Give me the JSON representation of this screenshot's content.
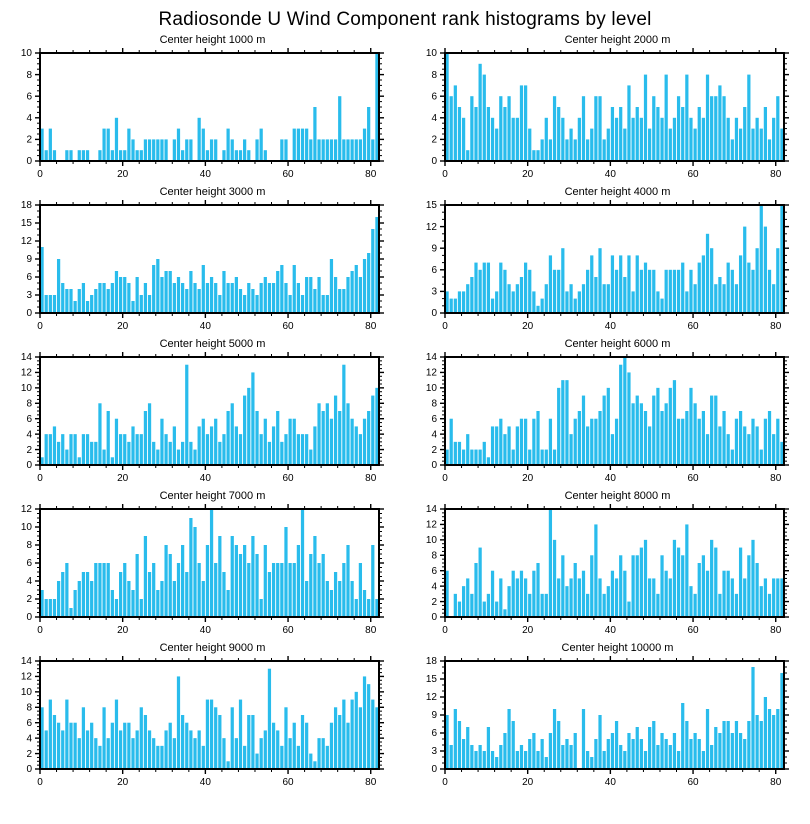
{
  "page": {
    "title": "Radiosonde U Wind Component rank histograms by level"
  },
  "colors": {
    "bar": "#29BCEC",
    "axis": "#000000",
    "background": "#FFFFFF"
  },
  "chart_data": [
    {
      "type": "bar",
      "title": "Center height 1000 m",
      "xlabel": "",
      "ylabel": "",
      "xlim": [
        0,
        82
      ],
      "ylim": [
        0,
        10
      ],
      "x_ticks": [
        0,
        20,
        40,
        60,
        80
      ],
      "x_minor_step": 4,
      "ytick_step": 2,
      "yminor_step": 0.5,
      "grid": false,
      "legend": "none",
      "values": [
        3,
        1,
        3,
        1,
        0,
        0,
        1,
        1,
        0,
        1,
        1,
        1,
        0,
        0,
        1,
        3,
        3,
        1,
        4,
        1,
        1,
        3,
        2,
        1,
        1,
        2,
        2,
        2,
        2,
        2,
        2,
        0,
        2,
        3,
        1,
        2,
        2,
        0,
        4,
        3,
        1,
        2,
        2,
        0,
        1,
        3,
        2,
        1,
        1,
        2,
        1,
        0,
        2,
        3,
        1,
        0,
        0,
        0,
        2,
        2,
        0,
        3,
        3,
        3,
        3,
        2,
        5,
        2,
        2,
        2,
        2,
        2,
        6,
        2,
        2,
        2,
        2,
        2,
        3,
        5,
        2,
        10
      ]
    },
    {
      "type": "bar",
      "title": "Center height 2000 m",
      "xlabel": "",
      "ylabel": "",
      "xlim": [
        0,
        82
      ],
      "ylim": [
        0,
        10
      ],
      "x_ticks": [
        0,
        20,
        40,
        60,
        80
      ],
      "x_minor_step": 4,
      "ytick_step": 2,
      "yminor_step": 0.5,
      "grid": false,
      "legend": "none",
      "values": [
        10,
        6,
        7,
        5,
        4,
        1,
        6,
        5,
        9,
        8,
        5,
        4,
        3,
        6,
        5,
        6,
        4,
        4,
        7,
        7,
        3,
        1,
        1,
        2,
        4,
        2,
        6,
        5,
        4,
        2,
        3,
        2,
        4,
        6,
        2,
        3,
        6,
        6,
        2,
        3,
        5,
        4,
        5,
        3,
        7,
        4,
        5,
        4,
        8,
        3,
        6,
        5,
        4,
        8,
        3,
        4,
        6,
        5,
        8,
        4,
        3,
        5,
        4,
        8,
        6,
        6,
        7,
        6,
        4,
        2,
        4,
        3,
        5,
        8,
        3,
        4,
        3,
        5,
        2,
        4,
        6,
        3
      ]
    },
    {
      "type": "bar",
      "title": "Center height 3000 m",
      "xlabel": "",
      "ylabel": "",
      "xlim": [
        0,
        82
      ],
      "ylim": [
        0,
        18
      ],
      "x_ticks": [
        0,
        20,
        40,
        60,
        80
      ],
      "x_minor_step": 4,
      "ytick_step": 3,
      "yminor_step": 1,
      "grid": false,
      "legend": "none",
      "values": [
        11,
        3,
        3,
        3,
        9,
        5,
        4,
        4,
        2,
        4,
        5,
        2,
        3,
        4,
        5,
        5,
        4,
        5,
        7,
        6,
        6,
        5,
        2,
        6,
        3,
        5,
        3,
        8,
        9,
        6,
        7,
        7,
        5,
        6,
        5,
        4,
        7,
        5,
        4,
        8,
        5,
        6,
        5,
        3,
        7,
        5,
        5,
        6,
        4,
        3,
        5,
        4,
        3,
        5,
        6,
        5,
        5,
        7,
        8,
        5,
        3,
        8,
        5,
        3,
        6,
        6,
        4,
        6,
        3,
        3,
        9,
        6,
        4,
        4,
        6,
        7,
        8,
        6,
        9,
        10,
        14,
        16
      ]
    },
    {
      "type": "bar",
      "title": "Center height 4000 m",
      "xlabel": "",
      "ylabel": "",
      "xlim": [
        0,
        82
      ],
      "ylim": [
        0,
        15
      ],
      "x_ticks": [
        0,
        20,
        40,
        60,
        80
      ],
      "x_minor_step": 4,
      "ytick_step": 3,
      "yminor_step": 1,
      "grid": false,
      "legend": "none",
      "values": [
        3,
        2,
        2,
        3,
        3,
        4,
        5,
        7,
        6,
        7,
        7,
        2,
        3,
        7,
        6,
        4,
        3,
        4,
        5,
        7,
        6,
        3,
        1,
        2,
        4,
        8,
        6,
        6,
        9,
        3,
        4,
        2,
        3,
        4,
        6,
        8,
        5,
        9,
        4,
        4,
        8,
        6,
        8,
        5,
        8,
        3,
        8,
        6,
        7,
        6,
        6,
        3,
        2,
        6,
        6,
        6,
        6,
        7,
        3,
        6,
        4,
        7,
        8,
        11,
        9,
        4,
        5,
        4,
        7,
        6,
        4,
        8,
        12,
        7,
        6,
        9,
        15,
        12,
        6,
        4,
        9,
        15
      ]
    },
    {
      "type": "bar",
      "title": "Center height 5000 m",
      "xlabel": "",
      "ylabel": "",
      "xlim": [
        0,
        82
      ],
      "ylim": [
        0,
        14
      ],
      "x_ticks": [
        0,
        20,
        40,
        60,
        80
      ],
      "x_minor_step": 4,
      "ytick_step": 2,
      "yminor_step": 0.5,
      "grid": false,
      "legend": "none",
      "values": [
        1,
        4,
        4,
        5,
        3,
        4,
        2,
        4,
        4,
        1,
        4,
        4,
        3,
        3,
        8,
        2,
        7,
        1,
        6,
        4,
        4,
        3,
        5,
        4,
        4,
        7,
        8,
        3,
        2,
        6,
        4,
        3,
        5,
        2,
        3,
        13,
        3,
        2,
        5,
        6,
        4,
        5,
        6,
        3,
        4,
        7,
        8,
        5,
        4,
        9,
        10,
        12,
        7,
        4,
        6,
        3,
        5,
        7,
        3,
        4,
        6,
        6,
        4,
        4,
        4,
        2,
        5,
        8,
        7,
        8,
        6,
        9,
        7,
        13,
        8,
        6,
        5,
        4,
        6,
        7,
        9,
        10
      ]
    },
    {
      "type": "bar",
      "title": "Center height 6000 m",
      "xlabel": "",
      "ylabel": "",
      "xlim": [
        0,
        82
      ],
      "ylim": [
        0,
        14
      ],
      "x_ticks": [
        0,
        20,
        40,
        60,
        80
      ],
      "x_minor_step": 4,
      "ytick_step": 2,
      "yminor_step": 0.5,
      "grid": false,
      "legend": "none",
      "values": [
        2,
        6,
        3,
        3,
        2,
        4,
        2,
        2,
        2,
        3,
        1,
        5,
        5,
        6,
        4,
        5,
        2,
        5,
        6,
        6,
        2,
        6,
        7,
        2,
        2,
        6,
        2,
        10,
        11,
        11,
        4,
        6,
        7,
        9,
        5,
        6,
        6,
        7,
        9,
        10,
        4,
        6,
        13,
        14,
        12,
        8,
        9,
        8,
        7,
        5,
        9,
        10,
        7,
        8,
        10,
        11,
        6,
        6,
        7,
        10,
        8,
        6,
        7,
        4,
        9,
        9,
        5,
        7,
        4,
        2,
        6,
        7,
        5,
        4,
        6,
        5,
        2,
        6,
        7,
        4,
        6,
        3
      ]
    },
    {
      "type": "bar",
      "title": "Center height 7000 m",
      "xlabel": "",
      "ylabel": "",
      "xlim": [
        0,
        82
      ],
      "ylim": [
        0,
        12
      ],
      "x_ticks": [
        0,
        20,
        40,
        60,
        80
      ],
      "x_minor_step": 4,
      "ytick_step": 2,
      "yminor_step": 0.5,
      "grid": false,
      "legend": "none",
      "values": [
        3,
        2,
        2,
        2,
        4,
        5,
        6,
        1,
        3,
        4,
        5,
        5,
        4,
        6,
        6,
        6,
        6,
        3,
        2,
        5,
        6,
        4,
        3,
        7,
        2,
        9,
        5,
        6,
        3,
        4,
        8,
        7,
        4,
        6,
        8,
        5,
        11,
        10,
        6,
        4,
        8,
        12,
        6,
        9,
        5,
        3,
        9,
        8,
        7,
        8,
        6,
        9,
        7,
        2,
        8,
        5,
        6,
        6,
        6,
        10,
        6,
        6,
        8,
        12,
        4,
        7,
        9,
        6,
        7,
        4,
        3,
        5,
        4,
        6,
        8,
        4,
        2,
        6,
        3,
        2,
        8,
        2
      ]
    },
    {
      "type": "bar",
      "title": "Center height 8000 m",
      "xlabel": "",
      "ylabel": "",
      "xlim": [
        0,
        82
      ],
      "ylim": [
        0,
        14
      ],
      "x_ticks": [
        0,
        20,
        40,
        60,
        80
      ],
      "x_minor_step": 4,
      "ytick_step": 2,
      "yminor_step": 0.5,
      "grid": false,
      "legend": "none",
      "values": [
        6,
        0,
        3,
        2,
        4,
        5,
        3,
        7,
        9,
        2,
        3,
        6,
        2,
        5,
        1,
        4,
        6,
        5,
        6,
        5,
        3,
        6,
        7,
        3,
        3,
        14,
        10,
        5,
        8,
        4,
        5,
        7,
        5,
        6,
        3,
        8,
        12,
        5,
        3,
        4,
        6,
        5,
        8,
        6,
        2,
        8,
        8,
        9,
        10,
        5,
        5,
        3,
        8,
        6,
        5,
        10,
        9,
        8,
        12,
        4,
        3,
        7,
        8,
        6,
        10,
        9,
        3,
        6,
        6,
        5,
        3,
        9,
        5,
        8,
        10,
        7,
        4,
        5,
        3,
        5,
        5,
        5
      ]
    },
    {
      "type": "bar",
      "title": "Center height 9000 m",
      "xlabel": "",
      "ylabel": "",
      "xlim": [
        0,
        82
      ],
      "ylim": [
        0,
        14
      ],
      "x_ticks": [
        0,
        20,
        40,
        60,
        80
      ],
      "x_minor_step": 4,
      "ytick_step": 2,
      "yminor_step": 0.5,
      "grid": false,
      "legend": "none",
      "values": [
        8,
        5,
        9,
        7,
        6,
        5,
        9,
        6,
        6,
        4,
        8,
        5,
        6,
        4,
        3,
        8,
        4,
        6,
        9,
        5,
        6,
        6,
        4,
        5,
        8,
        7,
        5,
        4,
        3,
        3,
        5,
        6,
        4,
        12,
        7,
        6,
        5,
        4,
        5,
        3,
        9,
        9,
        8,
        7,
        4,
        1,
        8,
        4,
        9,
        3,
        7,
        7,
        2,
        4,
        5,
        13,
        6,
        5,
        3,
        8,
        4,
        6,
        3,
        7,
        6,
        2,
        1,
        4,
        4,
        3,
        6,
        8,
        7,
        9,
        6,
        9,
        10,
        8,
        12,
        11,
        9,
        8
      ]
    },
    {
      "type": "bar",
      "title": "Center height 10000 m",
      "xlabel": "",
      "ylabel": "",
      "xlim": [
        0,
        82
      ],
      "ylim": [
        0,
        18
      ],
      "x_ticks": [
        0,
        20,
        40,
        60,
        80
      ],
      "x_minor_step": 4,
      "ytick_step": 3,
      "yminor_step": 1,
      "grid": false,
      "legend": "none",
      "values": [
        9,
        4,
        10,
        8,
        5,
        7,
        4,
        3,
        4,
        3,
        7,
        3,
        2,
        4,
        6,
        10,
        8,
        3,
        4,
        3,
        5,
        6,
        3,
        5,
        2,
        6,
        10,
        8,
        4,
        5,
        4,
        6,
        0,
        10,
        3,
        2,
        5,
        9,
        3,
        5,
        6,
        8,
        4,
        3,
        6,
        5,
        7,
        5,
        3,
        7,
        8,
        4,
        6,
        5,
        4,
        6,
        3,
        11,
        8,
        5,
        6,
        5,
        3,
        10,
        4,
        7,
        6,
        8,
        8,
        6,
        8,
        6,
        5,
        8,
        17,
        9,
        8,
        12,
        10,
        9,
        10,
        16
      ]
    }
  ]
}
